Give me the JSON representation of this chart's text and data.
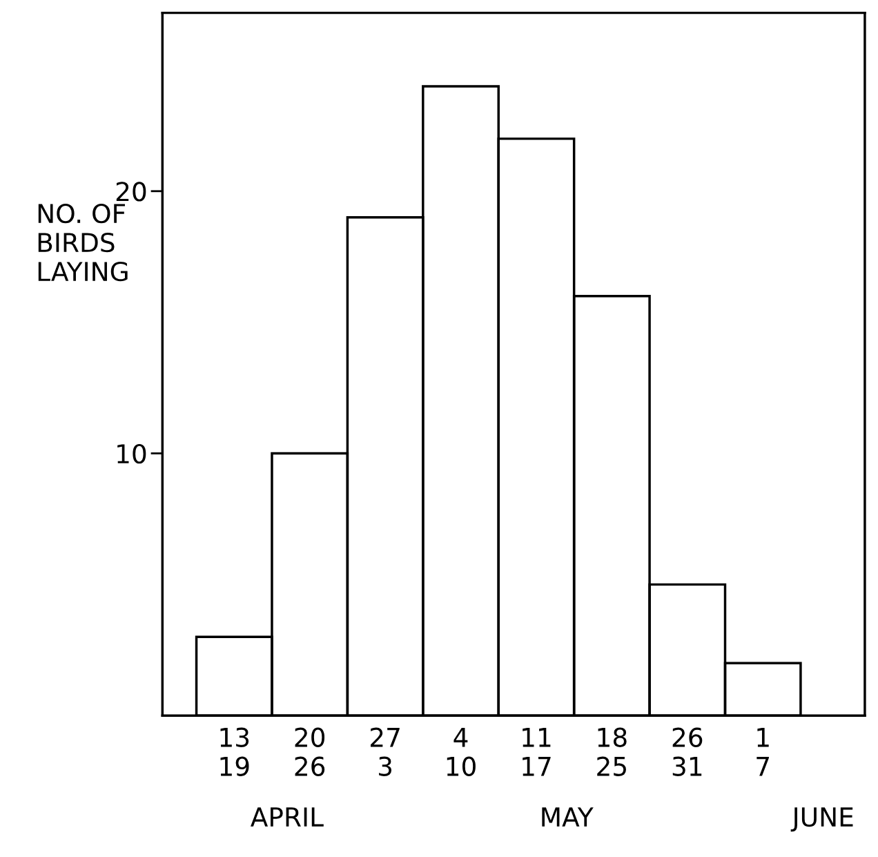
{
  "chart_data": {
    "type": "bar",
    "ylabel": "NO. OF\nBIRDS\nLAYING",
    "categories": [
      "13\n19",
      "20\n26",
      "27\n3",
      "4\n10",
      "11\n17",
      "18\n25",
      "26\n31",
      "1\n7"
    ],
    "values": [
      3,
      10,
      19,
      24,
      22,
      16,
      5,
      2
    ],
    "color": "#000000",
    "ylim": [
      0,
      26.8
    ],
    "yticks": [
      10,
      20
    ],
    "grid": false,
    "annotations": [
      "APRIL",
      "MAY",
      "JUNE"
    ]
  }
}
